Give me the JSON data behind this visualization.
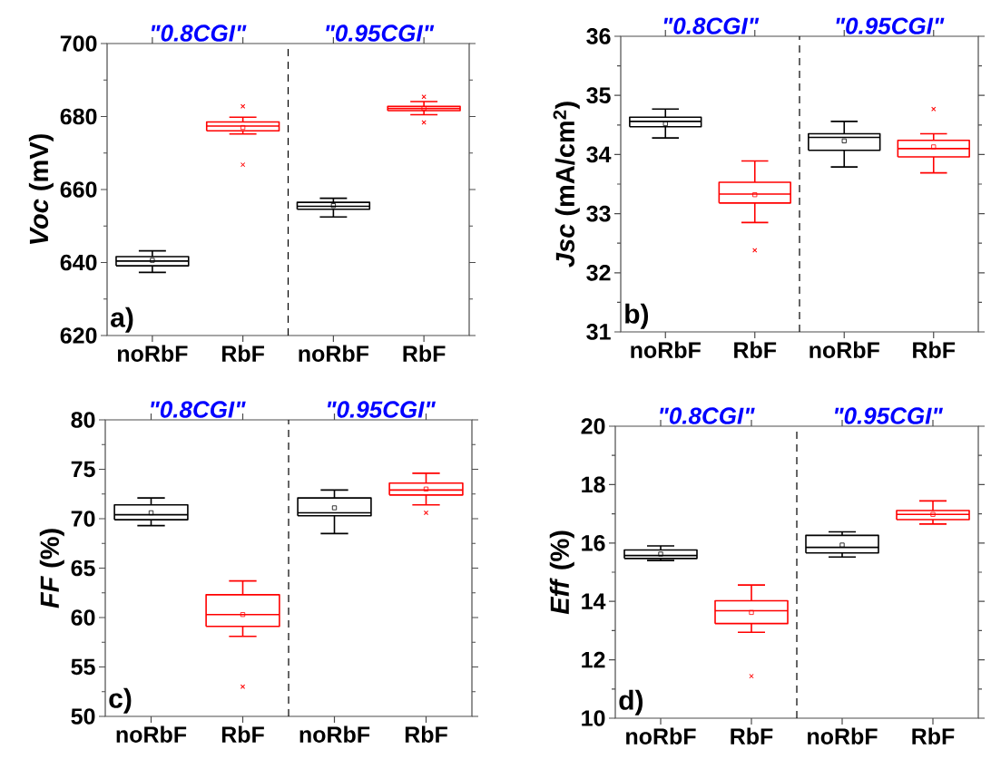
{
  "chart_data": [
    {
      "type": "box",
      "categories": [
        "noRbF",
        "RbF",
        "noRbF",
        "RbF"
      ],
      "ylabel": "*Voc* (mV)",
      "ylim": [
        620,
        700
      ],
      "yticks": [
        620,
        640,
        660,
        680,
        700
      ],
      "colors": [
        "#000000",
        "#ff0000",
        "#000000",
        "#ff0000"
      ],
      "boxes": [
        {
          "low": 637.3,
          "q1": 639.1,
          "median": 640.4,
          "q3": 641.6,
          "high": 643.2,
          "mean": 640.6
        },
        {
          "low": 675.2,
          "q1": 676.1,
          "median": 677.4,
          "q3": 678.5,
          "high": 679.8,
          "mean": 677.0,
          "outliers": [
            682.8,
            666.8
          ]
        },
        {
          "low": 652.5,
          "q1": 654.6,
          "median": 655.4,
          "q3": 656.5,
          "high": 657.6,
          "mean": 655.6
        },
        {
          "low": 680.5,
          "q1": 681.6,
          "median": 682.2,
          "q3": 682.8,
          "high": 684.1,
          "mean": 682.2,
          "outliers": [
            685.4,
            678.4
          ]
        }
      ],
      "annotations": [
        "\"0.8CGI\"",
        "\"0.95CGI\"",
        "a)"
      ]
    },
    {
      "type": "box",
      "categories": [
        "noRbF",
        "RbF",
        "noRbF",
        "RbF"
      ],
      "ylabel": "*Jsc* (mA/cm$^{2}$)",
      "ylim": [
        31,
        36
      ],
      "yticks": [
        31,
        32,
        33,
        34,
        35,
        36
      ],
      "colors": [
        "#000000",
        "#ff0000",
        "#000000",
        "#ff0000"
      ],
      "boxes": [
        {
          "low": 34.28,
          "q1": 34.47,
          "median": 34.56,
          "q3": 34.63,
          "high": 34.77,
          "mean": 34.52
        },
        {
          "low": 32.85,
          "q1": 33.18,
          "median": 33.33,
          "q3": 33.53,
          "high": 33.89,
          "mean": 33.32,
          "outliers": [
            32.38
          ]
        },
        {
          "low": 33.79,
          "q1": 34.07,
          "median": 34.29,
          "q3": 34.35,
          "high": 34.56,
          "mean": 34.23
        },
        {
          "low": 33.69,
          "q1": 33.96,
          "median": 34.1,
          "q3": 34.24,
          "high": 34.35,
          "mean": 34.13,
          "outliers": [
            34.77
          ]
        }
      ],
      "annotations": [
        "\"0.8CGI\"",
        "\"0.95CGI\"",
        "b)"
      ]
    },
    {
      "type": "box",
      "categories": [
        "noRbF",
        "RbF",
        "noRbF",
        "RbF"
      ],
      "ylabel": "*FF* (%)",
      "ylim": [
        50,
        80
      ],
      "yticks": [
        50,
        55,
        60,
        65,
        70,
        75,
        80
      ],
      "colors": [
        "#000000",
        "#ff0000",
        "#000000",
        "#ff0000"
      ],
      "boxes": [
        {
          "low": 69.3,
          "q1": 69.9,
          "median": 70.4,
          "q3": 71.4,
          "high": 72.1,
          "mean": 70.6
        },
        {
          "low": 58.1,
          "q1": 59.1,
          "median": 60.3,
          "q3": 62.3,
          "high": 63.7,
          "mean": 60.3,
          "outliers": [
            53.0
          ]
        },
        {
          "low": 68.5,
          "q1": 70.3,
          "median": 70.6,
          "q3": 72.1,
          "high": 72.9,
          "mean": 71.1
        },
        {
          "low": 71.4,
          "q1": 72.4,
          "median": 72.9,
          "q3": 73.6,
          "high": 74.6,
          "mean": 73.0,
          "outliers": [
            70.6
          ]
        }
      ],
      "annotations": [
        "\"0.8CGI\"",
        "\"0.95CGI\"",
        "c)"
      ]
    },
    {
      "type": "box",
      "categories": [
        "noRbF",
        "RbF",
        "noRbF",
        "RbF"
      ],
      "ylabel": "*Eff* (%)",
      "ylim": [
        10,
        20
      ],
      "yticks": [
        10,
        12,
        14,
        16,
        18,
        20
      ],
      "colors": [
        "#000000",
        "#ff0000",
        "#000000",
        "#ff0000"
      ],
      "boxes": [
        {
          "low": 15.4,
          "q1": 15.47,
          "median": 15.57,
          "q3": 15.76,
          "high": 15.9,
          "mean": 15.62
        },
        {
          "low": 12.94,
          "q1": 13.24,
          "median": 13.68,
          "q3": 14.02,
          "high": 14.56,
          "mean": 13.62,
          "outliers": [
            11.44
          ]
        },
        {
          "low": 15.52,
          "q1": 15.66,
          "median": 15.85,
          "q3": 16.26,
          "high": 16.38,
          "mean": 15.93
        },
        {
          "low": 16.65,
          "q1": 16.8,
          "median": 16.98,
          "q3": 17.11,
          "high": 17.44,
          "mean": 16.98
        }
      ],
      "annotations": [
        "\"0.8CGI\"",
        "\"0.95CGI\"",
        "d)"
      ]
    }
  ]
}
